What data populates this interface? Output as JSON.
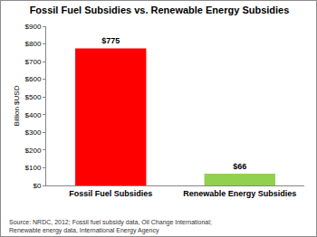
{
  "chart_data": {
    "type": "bar",
    "title": "Fossil Fuel Subsidies vs. Renewable Energy Subsidies",
    "y_label": "Billion $USD",
    "categories": [
      "Fossil Fuel Subsidies",
      "Renewable Energy Subsidies"
    ],
    "values": [
      775,
      66
    ],
    "value_labels": [
      "$775",
      "$66"
    ],
    "colors": [
      "#ff0000",
      "#92d050"
    ],
    "data_labels": true,
    "grid": false,
    "ylim": [
      0,
      900
    ],
    "yticks": [
      {
        "value": 0,
        "label": "$0"
      },
      {
        "value": 100,
        "label": "$100"
      },
      {
        "value": 200,
        "label": "$200"
      },
      {
        "value": 300,
        "label": "$300"
      },
      {
        "value": 400,
        "label": "$400"
      },
      {
        "value": 500,
        "label": "$500"
      },
      {
        "value": 600,
        "label": "$600"
      },
      {
        "value": 700,
        "label": "$700"
      },
      {
        "value": 800,
        "label": "$800"
      },
      {
        "value": 900,
        "label": "$900"
      }
    ],
    "annotations": [
      "Source: NRDC, 2012; Fossil fuel subsidy data, Oil Change International;",
      "Renewable energy data, International Energy Agency"
    ]
  }
}
